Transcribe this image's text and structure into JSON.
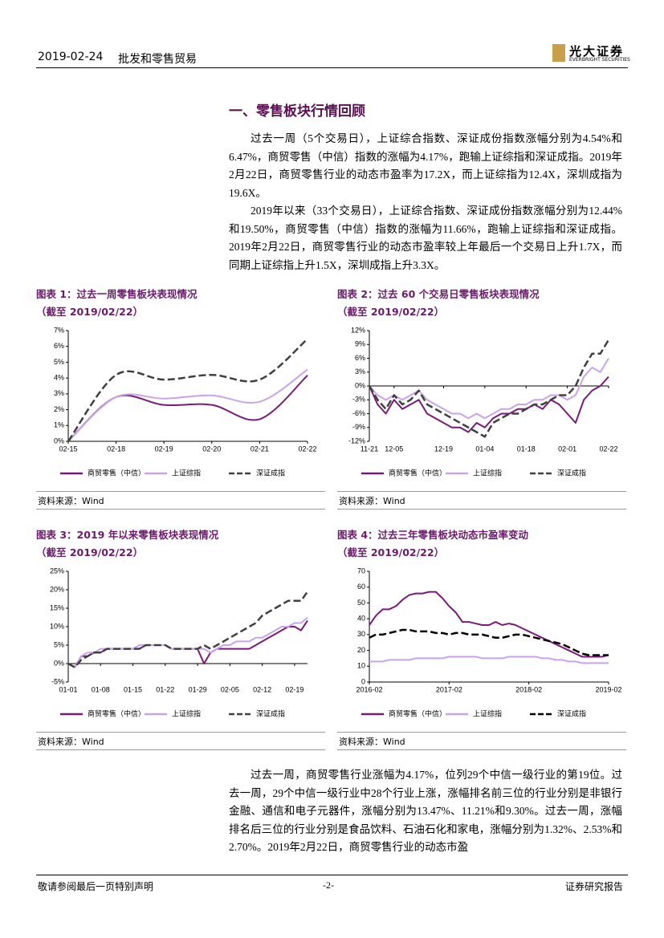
{
  "header": {
    "date": "2019-02-24",
    "industry": "批发和零售贸易",
    "logo_cn": "光大证券",
    "logo_en": "EVERBRIGHT SECURITIES"
  },
  "section_title": "一、零售板块行情回顾",
  "paragraphs": [
    "过去一周（5个交易日），上证综合指数、深证成份指数涨幅分别为4.54%和6.47%，商贸零售（中信）指数的涨幅为4.17%，跑输上证综指和深证成指。2019年2月22日，商贸零售行业的动态市盈率为17.2X，而上证综指为12.4X，深圳成指为19.6X。",
    "2019年以来（33个交易日），上证综合指数、深证成份指数涨幅分别为12.44%和19.50%，商贸零售（中信）指数的涨幅为11.66%，跑输上证综指和深证成指。2019年2月22日，商贸零售行业的动态市盈率较上年最后一个交易日上升1.7X，而同期上证综指上升1.5X，深圳成指上升3.3X。",
    "过去一周，商贸零售行业涨幅为4.17%，位列29个中信一级行业的第19位。过去一周，29个中信一级行业中28个行业上涨，涨幅排名前三位的行业分别是非银行金融、通信和电子元器件，涨幅分别为13.47%、11.21%和9.30%。过去一周，涨幅排名后三位的行业分别是食品饮料、石油石化和家电，涨幅分别为1.32%、2.53%和2.70%。2019年2月22日，商贸零售行业的动态市盈"
  ],
  "chart_data": [
    {
      "type": "line",
      "smooth": true,
      "title": "图表 1：过去一周零售板块表现情况",
      "subtitle": "（截至 2019/02/22）",
      "source": "资料来源：Wind",
      "categories": [
        "02-15",
        "02-18",
        "02-19",
        "02-20",
        "02-21",
        "02-22"
      ],
      "ylim": [
        0,
        7
      ],
      "yticks": [
        {
          "value": 0,
          "label": "0%"
        },
        {
          "value": 1,
          "label": "1%"
        },
        {
          "value": 2,
          "label": "2%"
        },
        {
          "value": 3,
          "label": "3%"
        },
        {
          "value": 4,
          "label": "4%"
        },
        {
          "value": 5,
          "label": "5%"
        },
        {
          "value": 6,
          "label": "6%"
        },
        {
          "value": 7,
          "label": "7%"
        }
      ],
      "series": [
        {
          "name": "商贸零售（中信）",
          "color": "#7a1a78",
          "values": [
            0,
            2.8,
            2.3,
            2.3,
            1.4,
            4.17
          ]
        },
        {
          "name": "上证综指",
          "color": "#c9a3ec",
          "values": [
            0,
            2.8,
            2.7,
            2.9,
            2.5,
            4.54
          ]
        },
        {
          "name": "深证成指",
          "color": "#404040",
          "dashed": true,
          "values": [
            0,
            4.2,
            3.9,
            4.2,
            3.9,
            6.47
          ]
        }
      ]
    },
    {
      "type": "line",
      "title": "图表 2：过去 60 个交易日零售板块表现情况",
      "subtitle": "（截至 2019/02/22）",
      "source": "资料来源：Wind",
      "categories": [
        "11-21",
        null,
        null,
        "12-05",
        null,
        null,
        null,
        null,
        null,
        "12-19",
        null,
        null,
        null,
        null,
        "01-04",
        null,
        null,
        null,
        null,
        "01-18",
        null,
        null,
        null,
        null,
        "02-01",
        null,
        null,
        null,
        null,
        "02-22"
      ],
      "ylim": [
        -12,
        12
      ],
      "yticks": [
        {
          "value": -12,
          "label": "-12%"
        },
        {
          "value": -9,
          "label": "-9%"
        },
        {
          "value": -6,
          "label": "-6%"
        },
        {
          "value": -3,
          "label": "-3%"
        },
        {
          "value": 0,
          "label": "0%"
        },
        {
          "value": 3,
          "label": "3%"
        },
        {
          "value": 6,
          "label": "6%"
        },
        {
          "value": 9,
          "label": "9%"
        },
        {
          "value": 12,
          "label": "12%"
        }
      ],
      "series": [
        {
          "name": "商贸零售（中信）",
          "color": "#7a1a78",
          "values": [
            0,
            -4,
            -6,
            -3,
            -5,
            -4,
            -3,
            -6,
            -7,
            -8,
            -9,
            -9,
            -10,
            -8,
            -9,
            -7,
            -6,
            -6,
            -5,
            -5,
            -4,
            -5,
            -3,
            -4,
            -6,
            -8,
            -3,
            -1,
            0,
            2
          ]
        },
        {
          "name": "上证综指",
          "color": "#c9a3ec",
          "values": [
            0,
            -2,
            -3,
            -2,
            -3,
            -2,
            -1,
            -3,
            -4,
            -5,
            -6,
            -6,
            -7,
            -6,
            -7,
            -6,
            -5,
            -5,
            -4,
            -4,
            -3,
            -3,
            -2,
            -2,
            -3,
            -2,
            2,
            4,
            3,
            6
          ]
        },
        {
          "name": "深证成指",
          "color": "#404040",
          "dashed": true,
          "values": [
            0,
            -3,
            -5,
            -2,
            -4,
            -3,
            -1,
            -4,
            -5,
            -6,
            -7,
            -8,
            -9,
            -10,
            -11,
            -8,
            -7,
            -6,
            -6,
            -5,
            -4,
            -4,
            -3,
            -2,
            -2,
            0,
            4,
            7,
            7,
            10
          ]
        }
      ]
    },
    {
      "type": "line",
      "title": "图表 3：2019 年以来零售板块表现情况",
      "subtitle": "（截至 2019/02/22）",
      "source": "资料来源：Wind",
      "categories": [
        "01-01",
        null,
        null,
        null,
        null,
        "01-08",
        null,
        null,
        null,
        null,
        "01-15",
        null,
        null,
        null,
        null,
        "01-22",
        null,
        null,
        null,
        null,
        "01-29",
        null,
        null,
        null,
        null,
        "02-05",
        null,
        null,
        null,
        null,
        "02-12",
        null,
        null,
        null,
        null,
        "02-19",
        null,
        null
      ],
      "ylim": [
        -5,
        25
      ],
      "yticks": [
        {
          "value": -5,
          "label": "-5%"
        },
        {
          "value": 0,
          "label": "0%"
        },
        {
          "value": 5,
          "label": "5%"
        },
        {
          "value": 10,
          "label": "10%"
        },
        {
          "value": 15,
          "label": "15%"
        },
        {
          "value": 20,
          "label": "20%"
        },
        {
          "value": 25,
          "label": "25%"
        }
      ],
      "series": [
        {
          "name": "商贸零售（中信）",
          "color": "#7a1a78",
          "values": [
            0,
            -1,
            2,
            2,
            3,
            3,
            4,
            4,
            4,
            4,
            4,
            4,
            5,
            5,
            5,
            5,
            4,
            4,
            4,
            4,
            4,
            0,
            3,
            4,
            4,
            4,
            4,
            4,
            4,
            5,
            6,
            7,
            8,
            9,
            10,
            10,
            9,
            11.66
          ]
        },
        {
          "name": "上证综指",
          "color": "#c9a3ec",
          "values": [
            0,
            -1,
            2,
            3,
            3,
            4,
            4,
            4,
            4,
            4,
            4,
            5,
            5,
            5,
            5,
            5,
            4,
            4,
            4,
            4,
            4,
            4,
            3,
            4,
            5,
            5,
            6,
            6,
            6,
            7,
            7,
            8,
            9,
            10,
            10,
            11,
            11,
            12.44
          ]
        },
        {
          "name": "深证成指",
          "color": "#404040",
          "dashed": true,
          "values": [
            0,
            -1,
            1,
            2,
            3,
            3,
            4,
            4,
            4,
            4,
            4,
            4,
            5,
            5,
            5,
            5,
            4,
            4,
            4,
            4,
            4,
            5,
            4,
            5,
            6,
            7,
            8,
            9,
            10,
            11,
            13,
            14,
            15,
            16,
            17,
            17,
            17,
            19.5
          ]
        }
      ]
    },
    {
      "type": "line",
      "title": "图表 4：过去三年零售板块动态市盈率变动",
      "subtitle": "（截至 2019/02/22）",
      "source": "资料来源：Wind",
      "categories": [
        "2016-02",
        null,
        null,
        null,
        null,
        null,
        null,
        null,
        null,
        null,
        null,
        null,
        "2017-02",
        null,
        null,
        null,
        null,
        null,
        null,
        null,
        null,
        null,
        null,
        null,
        "2018-02",
        null,
        null,
        null,
        null,
        null,
        null,
        null,
        null,
        null,
        null,
        null,
        "2019-02"
      ],
      "ylim": [
        0,
        70
      ],
      "yticks": [
        0,
        10,
        20,
        30,
        40,
        50,
        60,
        70
      ],
      "series": [
        {
          "name": "商贸零售（中信）",
          "color": "#7a1a78",
          "values": [
            36,
            42,
            46,
            46,
            48,
            52,
            55,
            56,
            56,
            57,
            57,
            53,
            48,
            44,
            38,
            38,
            37,
            36,
            36,
            38,
            36,
            37,
            36,
            34,
            32,
            30,
            28,
            26,
            24,
            22,
            20,
            18,
            16,
            16,
            16,
            16,
            17
          ]
        },
        {
          "name": "上证综指",
          "color": "#c9a3ec",
          "values": [
            13,
            13,
            13,
            14,
            14,
            14,
            14,
            15,
            15,
            15,
            15,
            15,
            16,
            16,
            16,
            16,
            16,
            15,
            15,
            15,
            15,
            16,
            16,
            16,
            16,
            16,
            15,
            15,
            14,
            14,
            13,
            13,
            12,
            12,
            12,
            12,
            12
          ]
        },
        {
          "name": "深证成指",
          "color": "#000000",
          "dashed": true,
          "values": [
            28,
            30,
            30,
            31,
            32,
            33,
            33,
            32,
            32,
            32,
            31,
            31,
            30,
            31,
            31,
            30,
            30,
            30,
            29,
            28,
            28,
            29,
            30,
            30,
            29,
            28,
            27,
            26,
            25,
            24,
            22,
            20,
            18,
            17,
            17,
            17,
            17
          ]
        }
      ]
    }
  ]
}
